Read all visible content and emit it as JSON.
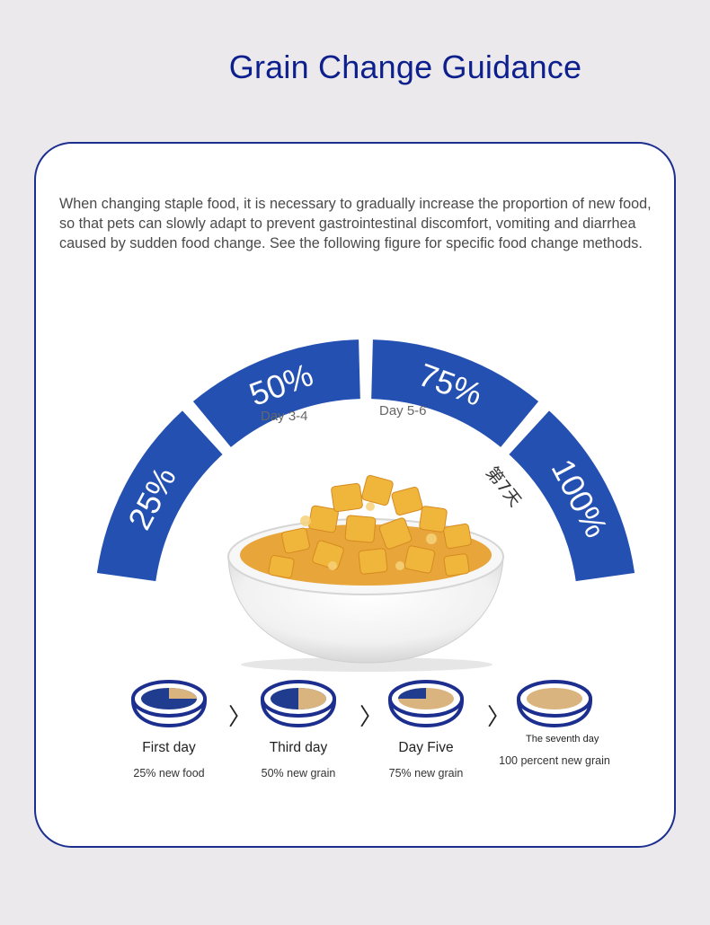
{
  "page": {
    "title": "Grain Change Guidance"
  },
  "intro": {
    "text": "When changing staple food, it is necessary to gradually increase the proportion of new food, so that pets can slowly adapt to prevent gastrointestinal discomfort, vomiting and diarrhea caused by sudden food change. See the following figure for specific food change methods."
  },
  "gauge": {
    "segments": [
      {
        "label": "25%",
        "fraction": 0.25
      },
      {
        "label": "50%",
        "fraction": 0.5
      },
      {
        "label": "75%",
        "fraction": 0.75
      },
      {
        "label": "100%",
        "fraction": 1.0
      }
    ],
    "day_labels": [
      "Day 3-4",
      "Day 5-6"
    ],
    "seventh_day_cn": "第7天"
  },
  "steps": [
    {
      "name": "First day",
      "desc": "25% new food",
      "fraction": 0.25
    },
    {
      "name": "Third day",
      "desc": "50% new grain",
      "fraction": 0.5
    },
    {
      "name": "Day Five",
      "desc": "75% new grain",
      "fraction": 0.75
    },
    {
      "name": "The seventh day",
      "desc": "100 percent new grain",
      "fraction": 1.0
    }
  ],
  "colors": {
    "navy": "#1c2f8f",
    "arc_blue": "#2350b1",
    "food_tan": "#d9b47e",
    "title": "#0d1f8c"
  }
}
